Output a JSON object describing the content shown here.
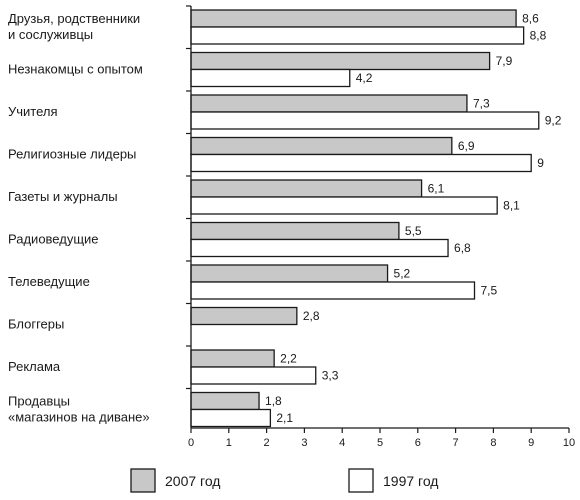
{
  "chart_data": {
    "type": "bar",
    "orientation": "horizontal",
    "categories": [
      [
        "Друзья, родственники",
        "и сослуживцы"
      ],
      [
        "Незнакомцы с опытом"
      ],
      [
        "Учителя"
      ],
      [
        "Религиозные лидеры"
      ],
      [
        "Газеты и журналы"
      ],
      [
        "Радиоведущие"
      ],
      [
        "Телеведущие"
      ],
      [
        "Блоггеры"
      ],
      [
        "Реклама"
      ],
      [
        "Продавцы",
        "«магазинов на диване»"
      ]
    ],
    "series": [
      {
        "name": "2007 год",
        "color": "#c8c8c8",
        "values": [
          8.6,
          7.9,
          7.3,
          6.9,
          6.1,
          5.5,
          5.2,
          2.8,
          2.2,
          1.8
        ],
        "labels": [
          "8,6",
          "7,9",
          "7,3",
          "6,9",
          "6,1",
          "5,5",
          "5,2",
          "2,8",
          "2,2",
          "1,8"
        ]
      },
      {
        "name": "1997 год",
        "color": "#ffffff",
        "values": [
          8.8,
          4.2,
          9.2,
          9,
          8.1,
          6.8,
          7.5,
          null,
          3.3,
          2.1
        ],
        "labels": [
          "8,8",
          "4,2",
          "9,2",
          "9",
          "8,1",
          "6,8",
          "7,5",
          "",
          "3,3",
          "2,1"
        ]
      }
    ],
    "x_ticks": [
      "0",
      "1",
      "2",
      "3",
      "4",
      "5",
      "6",
      "7",
      "8",
      "9",
      "10"
    ],
    "xlim": [
      0,
      10
    ],
    "grid": false,
    "legend_position": "bottom",
    "title": "",
    "xlabel": "",
    "ylabel": ""
  }
}
